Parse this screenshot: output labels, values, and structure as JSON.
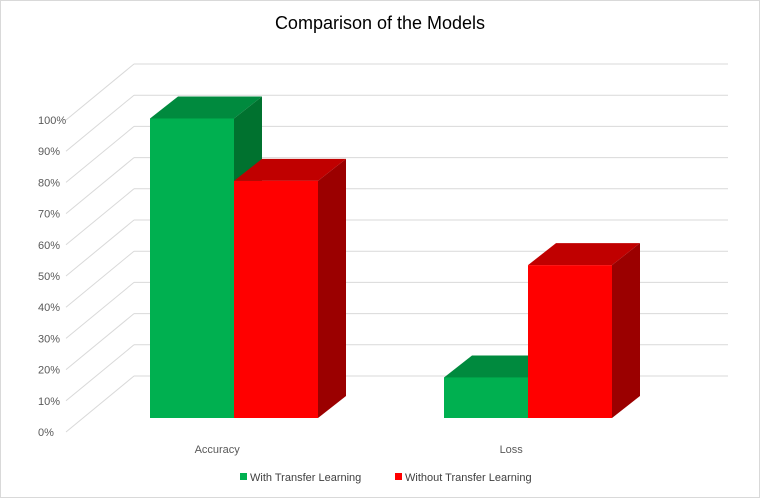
{
  "chart_data": {
    "type": "bar",
    "style": "3d-clustered-column",
    "title": "Comparison of the Models",
    "categories": [
      "Accuracy",
      "Loss"
    ],
    "series": [
      {
        "name": "With Transfer Learning",
        "values": [
          96,
          13
        ],
        "color": "#00b050",
        "side_color": "#00722f",
        "top_color": "#008a3e"
      },
      {
        "name": "Without Transfer Learning",
        "values": [
          76,
          49
        ],
        "color": "#ff0000",
        "side_color": "#9b0000",
        "top_color": "#c00000"
      }
    ],
    "ylim": [
      0,
      100
    ],
    "yticks": [
      "0%",
      "10%",
      "20%",
      "30%",
      "40%",
      "50%",
      "60%",
      "70%",
      "80%",
      "90%",
      "100%"
    ],
    "grid": true,
    "legend_position": "bottom"
  }
}
